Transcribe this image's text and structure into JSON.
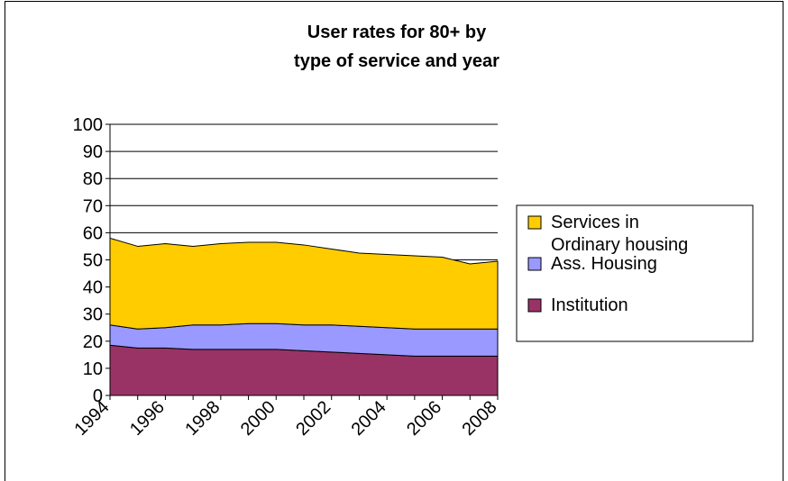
{
  "chart_data": {
    "type": "area",
    "stacked": true,
    "title": "User rates for 80+ by type of service and year",
    "title_lines": [
      "User rates for 80+ by",
      "type of service and year"
    ],
    "x": [
      1994,
      1995,
      1996,
      1997,
      1998,
      1999,
      2000,
      2001,
      2002,
      2003,
      2004,
      2005,
      2006,
      2007,
      2008
    ],
    "x_tick_labels": [
      "1994",
      "1996",
      "1998",
      "2000",
      "2002",
      "2004",
      "2006",
      "2008"
    ],
    "y_tick_labels": [
      "0",
      "10",
      "20",
      "30",
      "40",
      "50",
      "60",
      "70",
      "80",
      "90",
      "100"
    ],
    "ylim": [
      0,
      100
    ],
    "grid": "horizontal",
    "legend_position": "right",
    "series": [
      {
        "name": "Institution",
        "color": "#993366",
        "values": [
          18.5,
          17.5,
          17.5,
          17,
          17,
          17,
          17,
          16.5,
          16,
          15.5,
          15,
          14.5,
          14.5,
          14.5,
          14.5
        ]
      },
      {
        "name": "Ass. Housing",
        "color": "#9999FF",
        "values": [
          7.5,
          7,
          7.5,
          9,
          9,
          9.5,
          9.5,
          9.5,
          10,
          10,
          10,
          10,
          10,
          10,
          10
        ]
      },
      {
        "name": "Services in Ordinary housing",
        "color": "#FFCC00",
        "values": [
          32,
          30.5,
          31,
          29,
          30,
          30,
          30,
          29.5,
          28,
          27,
          27,
          27,
          26.5,
          24,
          25
        ]
      }
    ],
    "legend_entries": [
      {
        "series": "Services in Ordinary housing",
        "lines": [
          "Services in",
          "Ordinary housing"
        ]
      },
      {
        "series": "Ass. Housing",
        "lines": [
          "Ass. Housing"
        ]
      },
      {
        "series": "Institution",
        "lines": [
          "Institution"
        ]
      }
    ]
  }
}
